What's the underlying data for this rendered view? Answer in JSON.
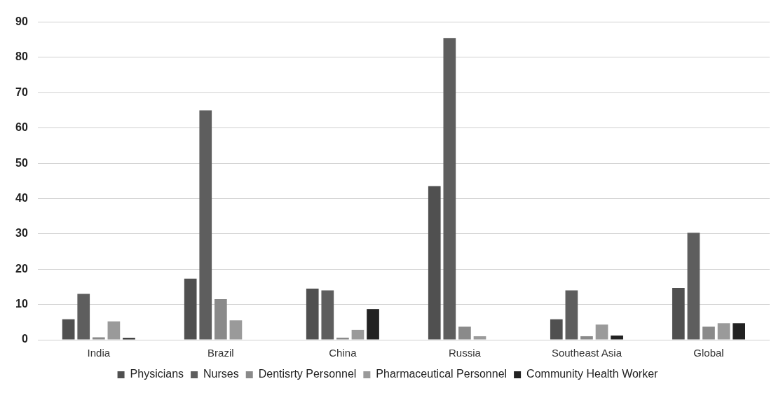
{
  "chart_data": {
    "type": "bar",
    "categories": [
      "India",
      "Brazil",
      "China",
      "Russia",
      "Southeast Asia",
      "Global"
    ],
    "series": [
      {
        "name": "Physicians",
        "color": "#505050",
        "values": [
          5.8,
          17.3,
          14.5,
          43.5,
          5.8,
          14.7
        ]
      },
      {
        "name": "Nurses",
        "color": "#5e5e5e",
        "values": [
          13,
          65,
          14,
          85.5,
          14,
          30.3
        ]
      },
      {
        "name": "Dentisrty Personnel",
        "color": "#8a8a8a",
        "values": [
          0.7,
          11.5,
          0.6,
          3.7,
          1,
          3.7
        ]
      },
      {
        "name": "Pharmaceutical Personnel",
        "color": "#9a9a9a",
        "values": [
          5.2,
          5.5,
          2.8,
          1,
          4.3,
          4.7
        ]
      },
      {
        "name": "Community Health Worker",
        "color": "#222222",
        "values": [
          0.5,
          null,
          8.7,
          null,
          1.2,
          4.7
        ]
      }
    ],
    "ylim": [
      0,
      90
    ],
    "yticks": [
      0,
      10,
      20,
      30,
      40,
      50,
      60,
      70,
      80,
      90
    ],
    "grid": "y",
    "legend": "bottom"
  }
}
